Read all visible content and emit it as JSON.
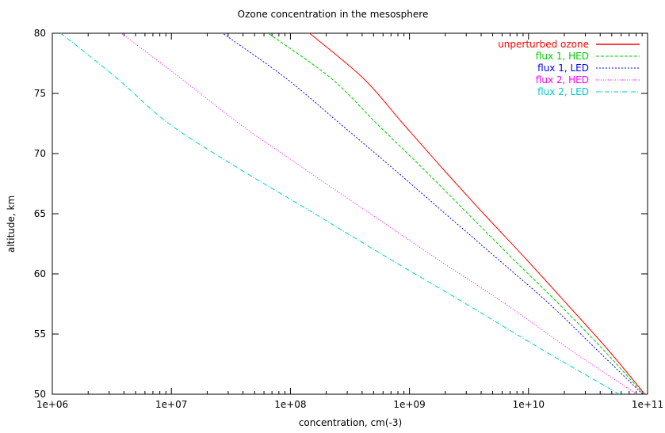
{
  "chart_data": {
    "type": "line",
    "title": "Ozone concentration in the mesosphere",
    "xlabel": "concentration, cm(-3)",
    "ylabel": "altitude, km",
    "x_scale": "log",
    "xlim": [
      1000000,
      100000000000
    ],
    "ylim": [
      50,
      80
    ],
    "x_ticks": [
      {
        "value": 1000000,
        "label": "1e+06"
      },
      {
        "value": 10000000,
        "label": "1e+07"
      },
      {
        "value": 100000000,
        "label": "1e+08"
      },
      {
        "value": 1000000000,
        "label": "1e+09"
      },
      {
        "value": 10000000000,
        "label": "1e+10"
      },
      {
        "value": 100000000000,
        "label": "1e+11"
      }
    ],
    "y_ticks": [
      {
        "value": 50,
        "label": "50"
      },
      {
        "value": 55,
        "label": "55"
      },
      {
        "value": 60,
        "label": "60"
      },
      {
        "value": 65,
        "label": "65"
      },
      {
        "value": 70,
        "label": "70"
      },
      {
        "value": 75,
        "label": "75"
      },
      {
        "value": 80,
        "label": "80"
      }
    ],
    "grid": false,
    "legend_position": "top-right",
    "series": [
      {
        "name": "unperturbed ozone",
        "color": "#ff0000",
        "dash": "solid",
        "x": [
          95000000000.0,
          46000000000.0,
          21000000000.0,
          9500000000.0,
          4200000000.0,
          1900000000.0,
          880000000.0,
          410000000.0,
          145000000.0
        ],
        "y": [
          50,
          53.75,
          57.5,
          61.25,
          65,
          68.75,
          72.5,
          76.25,
          80
        ]
      },
      {
        "name": "flux 1, HED",
        "color": "#00cc00",
        "dash": "dashed",
        "x": [
          93000000000.0,
          42000000000.0,
          18000000000.0,
          7400000000.0,
          3100000000.0,
          1300000000.0,
          530000000.0,
          220000000.0,
          65000000.0
        ],
        "y": [
          50,
          53.75,
          57.5,
          61.25,
          65,
          68.75,
          72.5,
          76.25,
          80
        ]
      },
      {
        "name": "flux 1, LED",
        "color": "#0000ff",
        "dash": "dotted",
        "x": [
          91000000000.0,
          37000000000.0,
          15000000000.0,
          5500000000.0,
          2000000000.0,
          730000000.0,
          260000000.0,
          92000000.0,
          27000000.0
        ],
        "y": [
          50,
          53.75,
          57.5,
          61.25,
          65,
          68.75,
          72.5,
          76.25,
          80
        ]
      },
      {
        "name": "flux 2, HED",
        "color": "#ff00ff",
        "dash": "fine-dotted",
        "x": [
          81000000000.0,
          22000000000.0,
          6400000000.0,
          1700000000.0,
          470000000.0,
          130000000.0,
          37000000.0,
          12000000.0,
          3800000.0
        ],
        "y": [
          50,
          53.75,
          57.5,
          61.25,
          65,
          68.75,
          72.5,
          76.25,
          80
        ]
      },
      {
        "name": "flux 2, LED",
        "color": "#00cccc",
        "dash": "dash-dot",
        "x": [
          58000000000.0,
          12800000000.0,
          3000000000.0,
          680000000.0,
          160000000.0,
          37000000.0,
          9500000.0,
          3500000.0,
          1180000.0
        ],
        "y": [
          50,
          53.75,
          57.5,
          61.25,
          65,
          68.75,
          72.5,
          76.25,
          80
        ]
      }
    ]
  }
}
